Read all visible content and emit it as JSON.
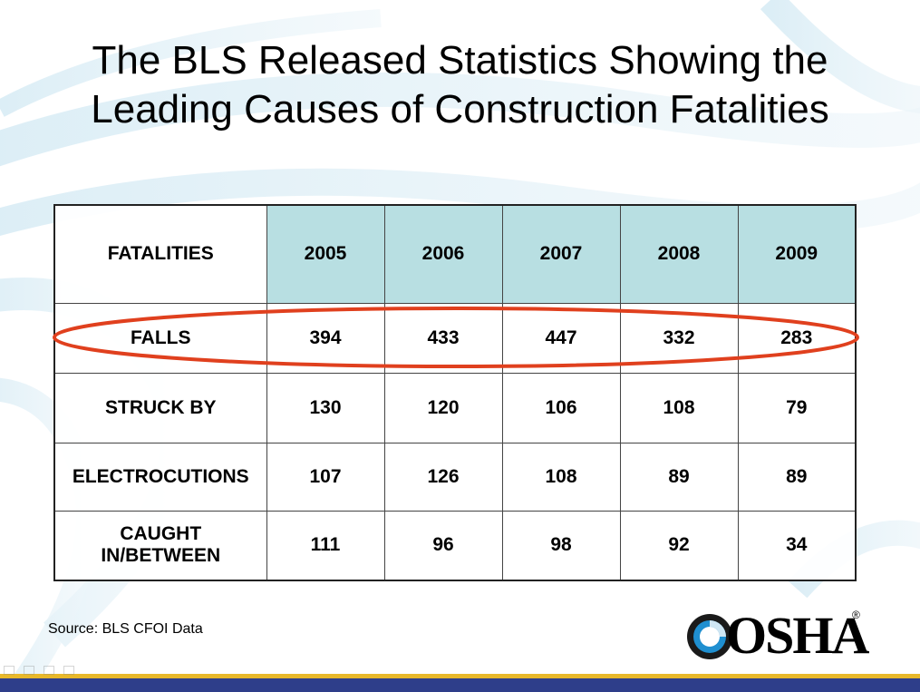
{
  "slide": {
    "title_line1": "The BLS Released Statistics Showing the",
    "title_line2": "Leading Causes of Construction Fatalities",
    "source": "Source: BLS CFOI Data",
    "logo_text": "OSHA",
    "logo_mark": "®"
  },
  "table": {
    "header_label": "FATALITIES",
    "years": [
      "2005",
      "2006",
      "2007",
      "2008",
      "2009"
    ],
    "rows": [
      {
        "cause": "FALLS",
        "values": [
          "394",
          "433",
          "447",
          "332",
          "283"
        ]
      },
      {
        "cause": "STRUCK BY",
        "values": [
          "130",
          "120",
          "106",
          "108",
          "79"
        ]
      },
      {
        "cause": "ELECTROCUTIONS",
        "values": [
          "107",
          "126",
          "108",
          "89",
          "89"
        ]
      },
      {
        "cause_line1": "CAUGHT",
        "cause_line2": "IN/BETWEEN",
        "values": [
          "111",
          "96",
          "98",
          "92",
          "34"
        ]
      }
    ]
  },
  "colors": {
    "header_fill": "#b8dfe2",
    "highlight_oval": "#e0401e",
    "bar_gold": "#e8b82a",
    "bar_navy": "#2e3e8a",
    "logo_blue": "#1f8fd0"
  },
  "icons": [
    "swirl-background",
    "osha-logo-icon",
    "highlight-oval"
  ]
}
